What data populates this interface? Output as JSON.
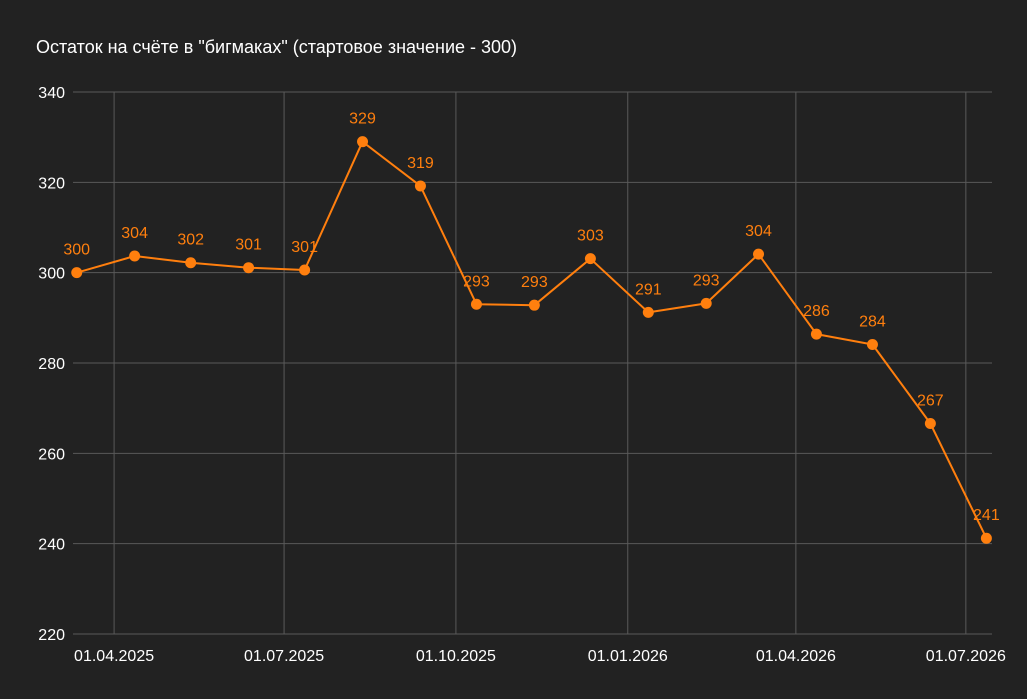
{
  "chart_data": {
    "type": "line",
    "title": "Остаток на счёте в \"бигмаках\" (стартовое значение - 300)",
    "xlabel": "",
    "ylabel": "",
    "x_axis": {
      "type": "date",
      "range": [
        "2025-03-10",
        "2026-07-15"
      ],
      "ticks": [
        {
          "date": "2025-04-01",
          "label": "01.04.2025"
        },
        {
          "date": "2025-07-01",
          "label": "01.07.2025"
        },
        {
          "date": "2025-10-01",
          "label": "01.10.2025"
        },
        {
          "date": "2026-01-01",
          "label": "01.01.2026"
        },
        {
          "date": "2026-04-01",
          "label": "01.04.2026"
        },
        {
          "date": "2026-07-01",
          "label": "01.07.2026"
        }
      ]
    },
    "ylim": [
      220,
      340
    ],
    "yticks": [
      220,
      240,
      260,
      280,
      300,
      320,
      340
    ],
    "grid": true,
    "legend": "none",
    "colors": {
      "background": "#222222",
      "grid": "#5a5a5a",
      "text": "#ffffff",
      "series": "#ff7f0e"
    },
    "series": [
      {
        "color": "#ff7f0e",
        "points": [
          {
            "date": "2025-03-12",
            "value": 300,
            "label": "300"
          },
          {
            "date": "2025-04-12",
            "value": 303.7,
            "label": "304"
          },
          {
            "date": "2025-05-12",
            "value": 302.2,
            "label": "302"
          },
          {
            "date": "2025-06-12",
            "value": 301.1,
            "label": "301"
          },
          {
            "date": "2025-07-12",
            "value": 300.6,
            "label": "301"
          },
          {
            "date": "2025-08-12",
            "value": 329,
            "label": "329"
          },
          {
            "date": "2025-09-12",
            "value": 319.2,
            "label": "319"
          },
          {
            "date": "2025-10-12",
            "value": 293,
            "label": "293"
          },
          {
            "date": "2025-11-12",
            "value": 292.8,
            "label": "293"
          },
          {
            "date": "2025-12-12",
            "value": 303.1,
            "label": "303"
          },
          {
            "date": "2026-01-12",
            "value": 291.2,
            "label": "291"
          },
          {
            "date": "2026-02-12",
            "value": 293.2,
            "label": "293"
          },
          {
            "date": "2026-03-12",
            "value": 304.1,
            "label": "304"
          },
          {
            "date": "2026-04-12",
            "value": 286.4,
            "label": "286"
          },
          {
            "date": "2026-05-12",
            "value": 284.1,
            "label": "284"
          },
          {
            "date": "2026-06-12",
            "value": 266.6,
            "label": "267"
          },
          {
            "date": "2026-07-12",
            "value": 241.2,
            "label": "241"
          }
        ]
      }
    ]
  }
}
